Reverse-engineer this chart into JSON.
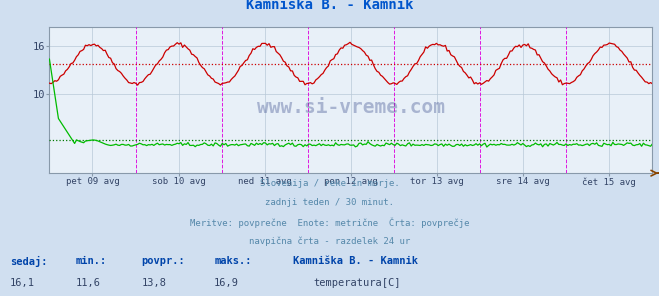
{
  "title": "Kamniška B. - Kamnik",
  "title_color": "#0055cc",
  "bg_color": "#d0dff0",
  "plot_bg_color": "#e8f0f8",
  "grid_color": "#b8c8d8",
  "x_labels": [
    "pet 09 avg",
    "sob 10 avg",
    "ned 11 avg",
    "pon 12 avg",
    "tor 13 avg",
    "sre 14 avg",
    "čet 15 avg"
  ],
  "y_ticks": [
    10,
    16
  ],
  "y_min": 0,
  "y_max": 18.5,
  "temp_color": "#cc0000",
  "flow_color": "#00bb00",
  "temp_avg": 13.8,
  "flow_avg": 4.2,
  "temp_min": 11.6,
  "temp_max": 16.9,
  "temp_current": 16.1,
  "flow_min": 3.4,
  "flow_max": 14.4,
  "flow_current": 3.6,
  "flow_povpr": 4.2,
  "vline_color": "#dd00dd",
  "hline_temp_color": "#cc0000",
  "hline_flow_color": "#007700",
  "footer_lines": [
    "Slovenija / reke in morje.",
    "zadnji teden / 30 minut.",
    "Meritve: povprečne  Enote: metrične  Črta: povprečje",
    "navpična črta - razdelek 24 ur"
  ],
  "footer_color": "#5588aa",
  "table_header_color": "#0044aa",
  "table_value_color": "#334466",
  "n_points": 336,
  "x_vlines_positions": [
    0.142857,
    0.285714,
    0.428571,
    0.571429,
    0.714286,
    0.857143
  ]
}
